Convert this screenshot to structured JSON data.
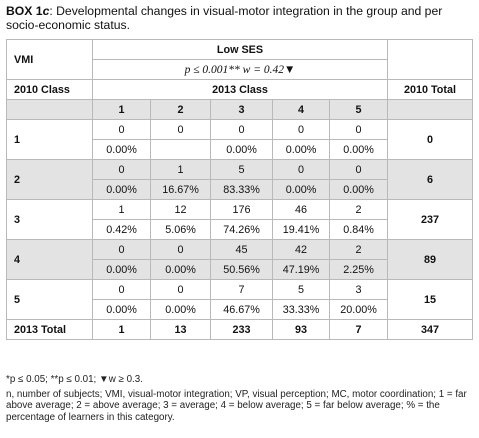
{
  "title": {
    "box": "BOX 1",
    "box_suffix": "c",
    "text": ": Developmental changes in visual-motor integration in the group and per socio-economic status."
  },
  "header": {
    "vmi": "VMI",
    "low_ses": "Low SES",
    "stats": "p ≤ 0.001** w = 0.42▼",
    "class2010": "2010 Class",
    "class2013": "2013 Class",
    "total2010": "2010 Total",
    "columns": [
      "1",
      "2",
      "3",
      "4",
      "5"
    ]
  },
  "rows": [
    {
      "label": "1",
      "counts": [
        "0",
        "0",
        "0",
        "0",
        "0"
      ],
      "percents": [
        "0.00%",
        "",
        "0.00%",
        "0.00%",
        "0.00%"
      ],
      "total": "0"
    },
    {
      "label": "2",
      "counts": [
        "0",
        "1",
        "5",
        "0",
        "0"
      ],
      "percents": [
        "0.00%",
        "16.67%",
        "83.33%",
        "0.00%",
        "0.00%"
      ],
      "total": "6"
    },
    {
      "label": "3",
      "counts": [
        "1",
        "12",
        "176",
        "46",
        "2"
      ],
      "percents": [
        "0.42%",
        "5.06%",
        "74.26%",
        "19.41%",
        "0.84%"
      ],
      "total": "237"
    },
    {
      "label": "4",
      "counts": [
        "0",
        "0",
        "45",
        "42",
        "2"
      ],
      "percents": [
        "0.00%",
        "0.00%",
        "50.56%",
        "47.19%",
        "2.25%"
      ],
      "total": "89"
    },
    {
      "label": "5",
      "counts": [
        "0",
        "0",
        "7",
        "5",
        "3"
      ],
      "percents": [
        "0.00%",
        "0.00%",
        "46.67%",
        "33.33%",
        "20.00%"
      ],
      "total": "15"
    }
  ],
  "total_row": {
    "label": "2013 Total",
    "values": [
      "1",
      "13",
      "233",
      "93",
      "7"
    ],
    "grand_total": "347"
  },
  "notes": {
    "significance": "*p ≤ 0.05; **p ≤ 0.01; ▼w ≥ 0.3.",
    "legend": "n, number of subjects; VMI, visual-motor integration; VP, visual perception; MC, motor coordination; 1 = far above average; 2 = above average; 3 = average; 4 = below average; 5 = far below average; % = the percentage of learners in this category."
  },
  "colors": {
    "shade": "#e3e3e3",
    "border": "#b9b9b9"
  }
}
